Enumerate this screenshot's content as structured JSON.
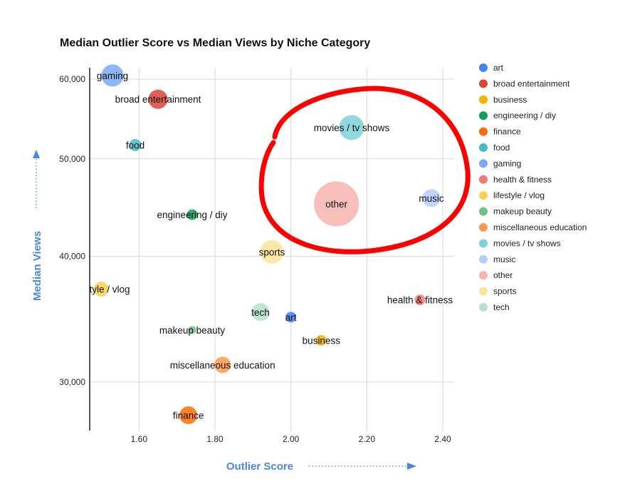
{
  "chart_data": {
    "type": "scatter",
    "title": "Median Outlier Score vs Median Views by Niche Category",
    "xlabel": "Outlier Score",
    "ylabel": "Median Views",
    "x_ticks": [
      "1.60",
      "1.80",
      "2.00",
      "2.20",
      "2.40"
    ],
    "y_ticks": [
      "30,000",
      "40,000",
      "50,000",
      "60,000"
    ],
    "xlim": [
      1.47,
      2.43
    ],
    "ylim": [
      26800,
      62600
    ],
    "y_scale": "log",
    "grid": true,
    "legend_position": "right",
    "axis_title_color": "#4a86e8",
    "annotation_color": "#ff0000",
    "series": [
      {
        "name": "art",
        "color": "#4285f4",
        "x": 2.0,
        "y": 34800,
        "size": 8,
        "label": "art"
      },
      {
        "name": "broad entertainment",
        "color": "#db4437",
        "x": 1.65,
        "y": 57300,
        "size": 14,
        "label": "broad entertainment"
      },
      {
        "name": "business",
        "color": "#f4b400",
        "x": 2.08,
        "y": 33000,
        "size": 8,
        "label": "business"
      },
      {
        "name": "engineering / diy",
        "color": "#0f9d58",
        "x": 1.74,
        "y": 44000,
        "size": 8,
        "label": "engineering / diy"
      },
      {
        "name": "finance",
        "color": "#ff6d01",
        "x": 1.73,
        "y": 27800,
        "size": 13,
        "label": "finance"
      },
      {
        "name": "food",
        "color": "#46bdc6",
        "x": 1.59,
        "y": 51600,
        "size": 9,
        "label": "food"
      },
      {
        "name": "gaming",
        "color": "#7baaf7",
        "x": 1.53,
        "y": 60500,
        "size": 16,
        "label": "gaming"
      },
      {
        "name": "health & fitness",
        "color": "#f07b72",
        "x": 2.34,
        "y": 36200,
        "size": 8,
        "label": "health & fitness"
      },
      {
        "name": "lifestyle / vlog",
        "color": "#fcd04f",
        "x": 1.5,
        "y": 37100,
        "size": 11,
        "label": "lifestyle / vlog"
      },
      {
        "name": "makeup beauty",
        "color": "#71c287",
        "x": 1.74,
        "y": 33800,
        "size": 6,
        "label": "makeup beauty"
      },
      {
        "name": "miscellaneous education",
        "color": "#ff994d",
        "x": 1.82,
        "y": 31200,
        "size": 12,
        "label": "miscellaneous education"
      },
      {
        "name": "movies / tv shows",
        "color": "#7ed1d7",
        "x": 2.16,
        "y": 53700,
        "size": 18,
        "label": "movies / tv shows"
      },
      {
        "name": "music",
        "color": "#b3cefb",
        "x": 2.37,
        "y": 45700,
        "size": 13,
        "label": "music"
      },
      {
        "name": "other",
        "color": "#f7b4ae",
        "x": 2.12,
        "y": 45100,
        "size": 32,
        "label": "other"
      },
      {
        "name": "sports",
        "color": "#fde49b",
        "x": 1.95,
        "y": 40400,
        "size": 17,
        "label": "sports"
      },
      {
        "name": "tech",
        "color": "#b7e1cd",
        "x": 1.92,
        "y": 35200,
        "size": 13,
        "label": "tech"
      }
    ]
  }
}
